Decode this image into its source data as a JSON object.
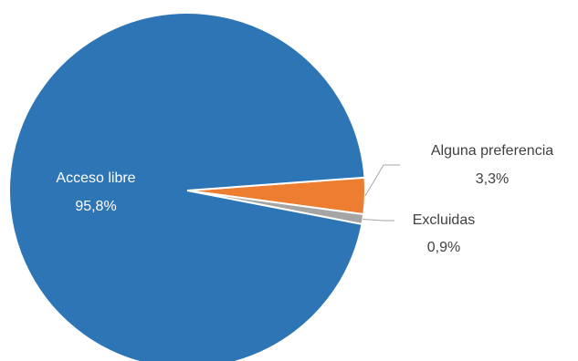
{
  "chart_data": {
    "type": "pie",
    "slices": [
      {
        "label": "Acceso libre",
        "value": 95.8,
        "display": "95,8%",
        "color": "#2E75B6"
      },
      {
        "label": "Alguna preferencia",
        "value": 3.3,
        "display": "3,3%",
        "color": "#ED7D31"
      },
      {
        "label": "Excluidas",
        "value": 0.9,
        "display": "0,9%",
        "color": "#A5A5A5"
      }
    ],
    "legend": "none"
  }
}
